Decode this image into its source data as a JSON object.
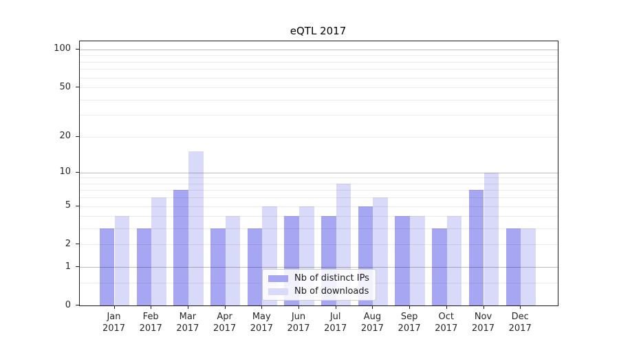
{
  "chart_data": {
    "type": "bar",
    "title": "eQTL 2017",
    "year": "2017",
    "months": [
      "Jan",
      "Feb",
      "Mar",
      "Apr",
      "May",
      "Jun",
      "Jul",
      "Aug",
      "Sep",
      "Oct",
      "Nov",
      "Dec"
    ],
    "series": [
      {
        "name": "Nb of distinct IPs",
        "color": "#a6a6f2",
        "values": [
          3,
          3,
          7,
          3,
          3,
          4,
          4,
          5,
          4,
          3,
          7,
          3
        ]
      },
      {
        "name": "Nb of downloads",
        "color": "#d9d9f9",
        "values": [
          4,
          6,
          15,
          4,
          5,
          5,
          8,
          6,
          4,
          4,
          10,
          3
        ]
      }
    ],
    "xlabel": "",
    "ylabel": "",
    "yaxis": {
      "scale": "symlog-ln(1+x)",
      "ylim": [
        0,
        116
      ],
      "labeled_ticks": [
        0,
        1,
        2,
        5,
        10,
        20,
        50,
        100
      ],
      "major_gridlines": [
        1,
        10,
        100
      ],
      "minor_gridlines": [
        0.5,
        2,
        3,
        4,
        5,
        6,
        7,
        8,
        9,
        20,
        30,
        40,
        50,
        60,
        70,
        80,
        90
      ]
    },
    "grid": true,
    "legend_position": "lower-center"
  },
  "colors": {
    "background": "#ffffff",
    "spine": "#1a1a1a",
    "text": "#262626",
    "bar_distinct_ips": "#a6a6f2",
    "bar_downloads": "#d9d9f9"
  }
}
